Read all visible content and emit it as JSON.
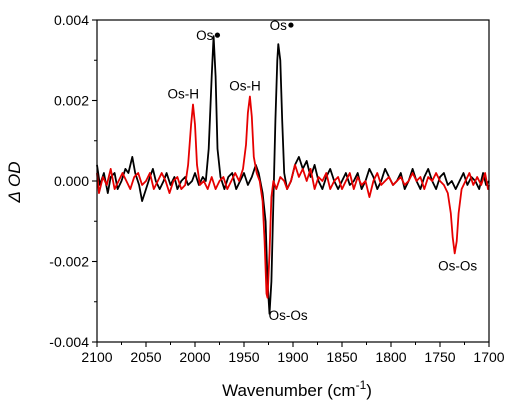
{
  "chart_data": {
    "type": "line",
    "xlabel": "Wavenumber (cm",
    "xlabel_sup": "-1",
    "xlabel_close": ")",
    "ylabel": "Δ OD",
    "xlim": [
      2100,
      1700
    ],
    "ylim": [
      -0.004,
      0.004
    ],
    "x_ticks": [
      2100,
      2050,
      2000,
      1950,
      1900,
      1850,
      1800,
      1750,
      1700
    ],
    "x_tick_labels": [
      "2100",
      "2050",
      "2000",
      "1950",
      "1900",
      "1850",
      "1800",
      "1750",
      "1700"
    ],
    "y_ticks": [
      -0.004,
      -0.002,
      0.0,
      0.002,
      0.004
    ],
    "y_tick_labels": [
      "-0.004",
      "-0.002",
      "0.000",
      "0.002",
      "0.004"
    ],
    "grid": false,
    "series": [
      {
        "color": "#000000",
        "points": [
          [
            2100,
            0.0004
          ],
          [
            2097,
            -0.0001
          ],
          [
            2093,
            0.0002
          ],
          [
            2089,
            -0.0003
          ],
          [
            2086,
            0.0001
          ],
          [
            2082,
            0.0002
          ],
          [
            2079,
            -0.0002
          ],
          [
            2075,
            0.0
          ],
          [
            2071,
            0.0003
          ],
          [
            2068,
            0.0002
          ],
          [
            2064,
            0.0006
          ],
          [
            2061,
            0.0002
          ],
          [
            2057,
            -0.0001
          ],
          [
            2054,
            -0.0005
          ],
          [
            2050,
            -0.0002
          ],
          [
            2046,
            0.0001
          ],
          [
            2043,
            0.0003
          ],
          [
            2040,
            0.0
          ],
          [
            2036,
            -0.0002
          ],
          [
            2032,
            0.0
          ],
          [
            2029,
            0.0002
          ],
          [
            2025,
            -0.0001
          ],
          [
            2021,
            0.0001
          ],
          [
            2018,
            -0.0002
          ],
          [
            2014,
            0.0
          ],
          [
            2010,
            0.0001
          ],
          [
            2007,
            -0.0001
          ],
          [
            2003,
            0.0
          ],
          [
            2000,
            0.0002
          ],
          [
            1996,
            -0.0001
          ],
          [
            1992,
            0.0001
          ],
          [
            1989,
            0.0
          ],
          [
            1986,
            0.0008
          ],
          [
            1983,
            0.0026
          ],
          [
            1981,
            0.0036
          ],
          [
            1979,
            0.0026
          ],
          [
            1977,
            0.0008
          ],
          [
            1974,
            0.0001
          ],
          [
            1970,
            -0.0002
          ],
          [
            1966,
            0.0001
          ],
          [
            1962,
            0.0002
          ],
          [
            1958,
            -0.0002
          ],
          [
            1954,
            0.0
          ],
          [
            1950,
            0.0002
          ],
          [
            1946,
            -0.0001
          ],
          [
            1942,
            0.0001
          ],
          [
            1938,
            0.0004
          ],
          [
            1935,
            0.0002
          ],
          [
            1931,
            -0.0003
          ],
          [
            1928,
            -0.001
          ],
          [
            1926,
            -0.0025
          ],
          [
            1924,
            -0.0033
          ],
          [
            1922,
            -0.0025
          ],
          [
            1920,
            -0.0005
          ],
          [
            1918,
            0.0015
          ],
          [
            1916,
            0.003
          ],
          [
            1915,
            0.0034
          ],
          [
            1913,
            0.003
          ],
          [
            1911,
            0.0015
          ],
          [
            1909,
            0.0002
          ],
          [
            1906,
            -0.0002
          ],
          [
            1902,
            0.0
          ],
          [
            1898,
            0.0004
          ],
          [
            1894,
            0.0006
          ],
          [
            1890,
            0.0003
          ],
          [
            1886,
            0.0005
          ],
          [
            1882,
            0.0001
          ],
          [
            1878,
            0.0004
          ],
          [
            1874,
            0.0
          ],
          [
            1870,
            -0.0002
          ],
          [
            1866,
            0.0001
          ],
          [
            1862,
            0.0003
          ],
          [
            1858,
            0.0
          ],
          [
            1854,
            -0.0002
          ],
          [
            1850,
            0.0
          ],
          [
            1846,
            0.0002
          ],
          [
            1842,
            -0.0001
          ],
          [
            1838,
            0.0
          ],
          [
            1834,
            0.0002
          ],
          [
            1830,
            -0.0002
          ],
          [
            1826,
            0.0
          ],
          [
            1822,
            0.0003
          ],
          [
            1818,
            0.0001
          ],
          [
            1814,
            -0.0002
          ],
          [
            1810,
            0.0
          ],
          [
            1806,
            0.0003
          ],
          [
            1802,
            0.0001
          ],
          [
            1798,
            -0.0001
          ],
          [
            1794,
            0.0
          ],
          [
            1790,
            0.0002
          ],
          [
            1786,
            -0.0002
          ],
          [
            1782,
            0.0
          ],
          [
            1778,
            0.0003
          ],
          [
            1774,
            0.0
          ],
          [
            1770,
            -0.0002
          ],
          [
            1766,
            0.0001
          ],
          [
            1762,
            0.0003
          ],
          [
            1758,
            0.0
          ],
          [
            1754,
            -0.0002
          ],
          [
            1750,
            0.0001
          ],
          [
            1746,
            0.0002
          ],
          [
            1742,
            -0.0001
          ],
          [
            1738,
            0.0
          ],
          [
            1734,
            -0.0002
          ],
          [
            1730,
            0.0
          ],
          [
            1726,
            0.0002
          ],
          [
            1722,
            -0.0001
          ],
          [
            1718,
            0.0001
          ],
          [
            1714,
            0.0
          ],
          [
            1710,
            -0.0002
          ],
          [
            1706,
            0.0002
          ],
          [
            1703,
            -0.0001
          ],
          [
            1700,
            0.0
          ]
        ]
      },
      {
        "color": "#e60000",
        "points": [
          [
            2100,
            0.0002
          ],
          [
            2098,
            -0.0003
          ],
          [
            2094,
            0.0001
          ],
          [
            2090,
            -0.0001
          ],
          [
            2086,
            0.0003
          ],
          [
            2082,
            -0.0002
          ],
          [
            2078,
            0.0
          ],
          [
            2074,
            0.0002
          ],
          [
            2070,
            0.0
          ],
          [
            2066,
            -0.0002
          ],
          [
            2062,
            0.0001
          ],
          [
            2058,
            0.0002
          ],
          [
            2054,
            -0.0001
          ],
          [
            2050,
            0.0
          ],
          [
            2046,
            0.0002
          ],
          [
            2042,
            -0.0002
          ],
          [
            2038,
            0.0
          ],
          [
            2034,
            0.0002
          ],
          [
            2030,
            0.0
          ],
          [
            2026,
            -0.0003
          ],
          [
            2022,
            0.0
          ],
          [
            2018,
            0.0001
          ],
          [
            2014,
            -0.0002
          ],
          [
            2010,
            -0.0001
          ],
          [
            2007,
            0.0004
          ],
          [
            2004,
            0.0014
          ],
          [
            2002,
            0.0019
          ],
          [
            2000,
            0.0014
          ],
          [
            1998,
            0.0004
          ],
          [
            1995,
            -0.0001
          ],
          [
            1991,
            0.0
          ],
          [
            1987,
            -0.0002
          ],
          [
            1983,
            0.0001
          ],
          [
            1979,
            -0.0002
          ],
          [
            1975,
            0.0
          ],
          [
            1971,
            0.0001
          ],
          [
            1967,
            -0.0002
          ],
          [
            1963,
            0.0
          ],
          [
            1959,
            0.0002
          ],
          [
            1955,
            0.0
          ],
          [
            1951,
            0.0003
          ],
          [
            1948,
            0.0009
          ],
          [
            1946,
            0.0017
          ],
          [
            1944,
            0.0021
          ],
          [
            1942,
            0.0016
          ],
          [
            1940,
            0.0006
          ],
          [
            1937,
            0.0002
          ],
          [
            1934,
            0.0
          ],
          [
            1931,
            -0.0005
          ],
          [
            1929,
            -0.0015
          ],
          [
            1927,
            -0.0028
          ],
          [
            1926,
            -0.0029
          ],
          [
            1924,
            -0.0018
          ],
          [
            1922,
            -0.0004
          ],
          [
            1920,
            0.0
          ],
          [
            1917,
            -0.0002
          ],
          [
            1913,
            0.0001
          ],
          [
            1909,
            0.0
          ],
          [
            1906,
            -0.0002
          ],
          [
            1902,
            0.0
          ],
          [
            1898,
            0.0004
          ],
          [
            1894,
            0.0001
          ],
          [
            1890,
            0.0003
          ],
          [
            1886,
            0.0
          ],
          [
            1882,
            0.0003
          ],
          [
            1878,
            -0.0002
          ],
          [
            1874,
            0.0001
          ],
          [
            1870,
            0.0
          ],
          [
            1866,
            0.0002
          ],
          [
            1862,
            -0.0002
          ],
          [
            1858,
            0.0
          ],
          [
            1854,
            0.0001
          ],
          [
            1850,
            -0.0002
          ],
          [
            1846,
            0.0
          ],
          [
            1842,
            0.0002
          ],
          [
            1838,
            -0.0002
          ],
          [
            1834,
            0.0001
          ],
          [
            1830,
            -0.0001
          ],
          [
            1826,
            0.0
          ],
          [
            1822,
            -0.0004
          ],
          [
            1818,
            0.0
          ],
          [
            1814,
            0.0002
          ],
          [
            1810,
            -0.0001
          ],
          [
            1806,
            0.0
          ],
          [
            1802,
            0.0001
          ],
          [
            1798,
            -0.0001
          ],
          [
            1794,
            0.0
          ],
          [
            1790,
            0.0001
          ],
          [
            1786,
            -0.0001
          ],
          [
            1782,
            0.0
          ],
          [
            1778,
            0.0002
          ],
          [
            1774,
            0.0
          ],
          [
            1770,
            0.0001
          ],
          [
            1766,
            -0.0002
          ],
          [
            1762,
            0.0001
          ],
          [
            1758,
            0.0
          ],
          [
            1754,
            0.0002
          ],
          [
            1750,
            0.0
          ],
          [
            1746,
            -0.0001
          ],
          [
            1742,
            -0.0003
          ],
          [
            1739,
            -0.0008
          ],
          [
            1737,
            -0.0014
          ],
          [
            1735,
            -0.0018
          ],
          [
            1733,
            -0.0015
          ],
          [
            1731,
            -0.0008
          ],
          [
            1728,
            -0.0002
          ],
          [
            1724,
            0.0
          ],
          [
            1720,
            0.0002
          ],
          [
            1716,
            -0.0001
          ],
          [
            1712,
            0.0001
          ],
          [
            1708,
            -0.0001
          ],
          [
            1704,
            0.0002
          ],
          [
            1701,
            -0.0002
          ],
          [
            1700,
            -0.0001
          ]
        ]
      }
    ],
    "annotations": [
      {
        "text": "Os-H",
        "x": 2012,
        "y": 0.00205,
        "anchor": "middle"
      },
      {
        "text": "Os",
        "x": 1990,
        "y": 0.0035,
        "anchor": "middle",
        "dot": true
      },
      {
        "text": "Os-H",
        "x": 1949,
        "y": 0.00225,
        "anchor": "middle"
      },
      {
        "text": "Os",
        "x": 1915,
        "y": 0.00375,
        "anchor": "middle",
        "dot": true
      },
      {
        "text": "Os-Os",
        "x": 1905,
        "y": -0.00345,
        "anchor": "middle"
      },
      {
        "text": "Os-Os",
        "x": 1732,
        "y": -0.00222,
        "anchor": "middle"
      }
    ]
  }
}
